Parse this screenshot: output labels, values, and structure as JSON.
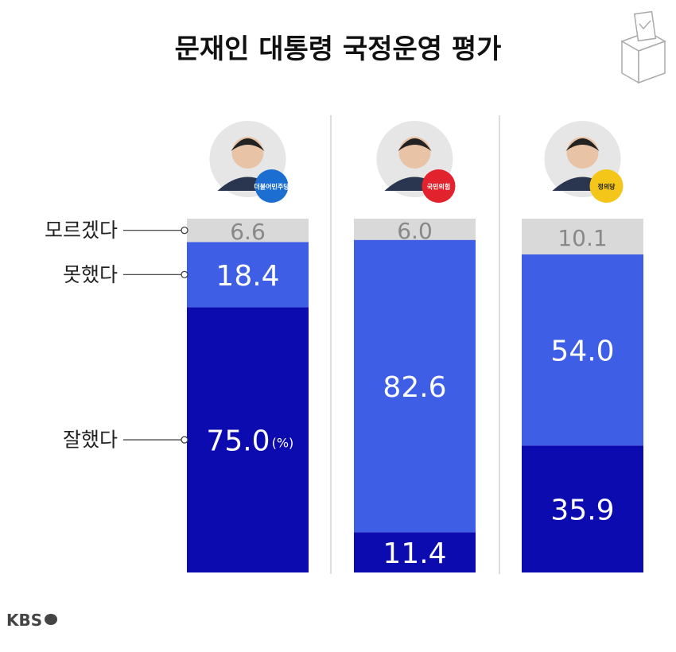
{
  "chart_data": {
    "type": "stacked-bar",
    "title": "문재인 대통령 국정운영 평가",
    "categories": [
      "더불어민주당",
      "국민의힘",
      "정의당"
    ],
    "category_colors": [
      "#1c6fd1",
      "#e2222d",
      "#f5c61a"
    ],
    "unit_label": "(%)",
    "ylim": [
      0,
      100
    ],
    "series": [
      {
        "name": "잘했다",
        "color": "#0b0bb0",
        "values": [
          75.0,
          11.4,
          35.9
        ],
        "value_labels": [
          "75.0",
          "11.4",
          "35.9"
        ]
      },
      {
        "name": "못했다",
        "color": "#3f5ee6",
        "values": [
          18.4,
          82.6,
          54.0
        ],
        "value_labels": [
          "18.4",
          "82.6",
          "54.0"
        ]
      },
      {
        "name": "모르겠다",
        "color": "#d9d9d9",
        "values": [
          6.6,
          6.0,
          10.1
        ],
        "value_labels": [
          "6.6",
          "6.0",
          "10.1"
        ]
      }
    ]
  },
  "logo": "KBS"
}
